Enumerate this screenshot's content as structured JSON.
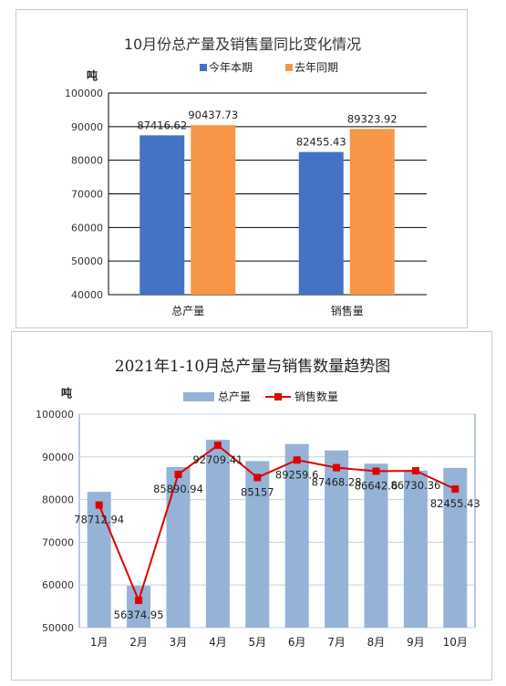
{
  "chart_data": [
    {
      "type": "bar",
      "title": "10月份总产量及销售量同比变化情况",
      "ylabel": "吨",
      "ylim": [
        40000,
        100000
      ],
      "yticks": [
        40000,
        50000,
        60000,
        70000,
        80000,
        90000,
        100000
      ],
      "categories": [
        "总产量",
        "销售量"
      ],
      "series": [
        {
          "name": "今年本期",
          "values": [
            87416.62,
            82455.43
          ],
          "labels": [
            "87416.62",
            "82455.43"
          ],
          "color": "#4472c4"
        },
        {
          "name": "去年同期",
          "values": [
            90437.73,
            89323.92
          ],
          "labels": [
            "90437.73",
            "89323.92"
          ],
          "color": "#f79646"
        }
      ],
      "grid": true,
      "legend": "top"
    },
    {
      "type": "bar",
      "title": "2021年1-10月总产量与销售数量趋势图",
      "ylabel": "吨",
      "ylim": [
        50000,
        100000
      ],
      "yticks": [
        50000,
        60000,
        70000,
        80000,
        90000,
        100000
      ],
      "categories": [
        "1月",
        "2月",
        "3月",
        "4月",
        "5月",
        "6月",
        "7月",
        "8月",
        "9月",
        "10月"
      ],
      "series": [
        {
          "name": "总产量",
          "kind": "bar",
          "values": [
            81800,
            59800,
            87600,
            94000,
            89000,
            93000,
            91500,
            88400,
            86800,
            87416.62
          ],
          "color": "#95b3d7"
        },
        {
          "name": "销售数量",
          "kind": "line",
          "values": [
            78712.94,
            56374.95,
            85890.94,
            92709.41,
            85157,
            89259.6,
            87468.28,
            86642.6,
            86730.36,
            82455.43
          ],
          "labels": [
            "78712.94",
            "56374.95",
            "85890.94",
            "92709.41",
            "85157",
            "89259.6",
            "87468.28",
            "86642.6",
            "86730.36",
            "82455.43"
          ],
          "color": "#e00000"
        }
      ],
      "grid": true,
      "legend": "top"
    }
  ]
}
